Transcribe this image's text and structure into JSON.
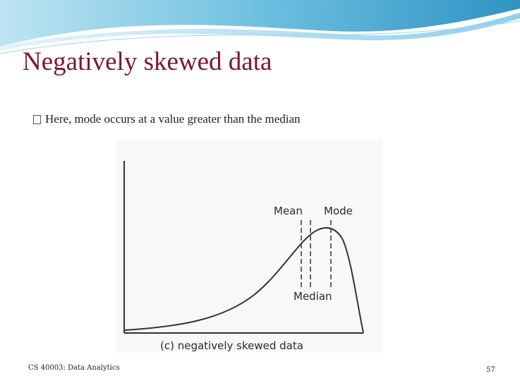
{
  "slide": {
    "title": "Negatively skewed data",
    "bullet": "Here, mode occurs at a value greater than the median"
  },
  "figure": {
    "labels": {
      "mean": "Mean",
      "mode": "Mode",
      "median": "Median",
      "caption": "(c) negatively skewed data"
    }
  },
  "footer": {
    "course": "CS 40003: Data Analytics",
    "page_number": "57"
  },
  "colors": {
    "title": "#7d1530",
    "header_wave": "#5fb3d8",
    "curve": "#333333"
  }
}
